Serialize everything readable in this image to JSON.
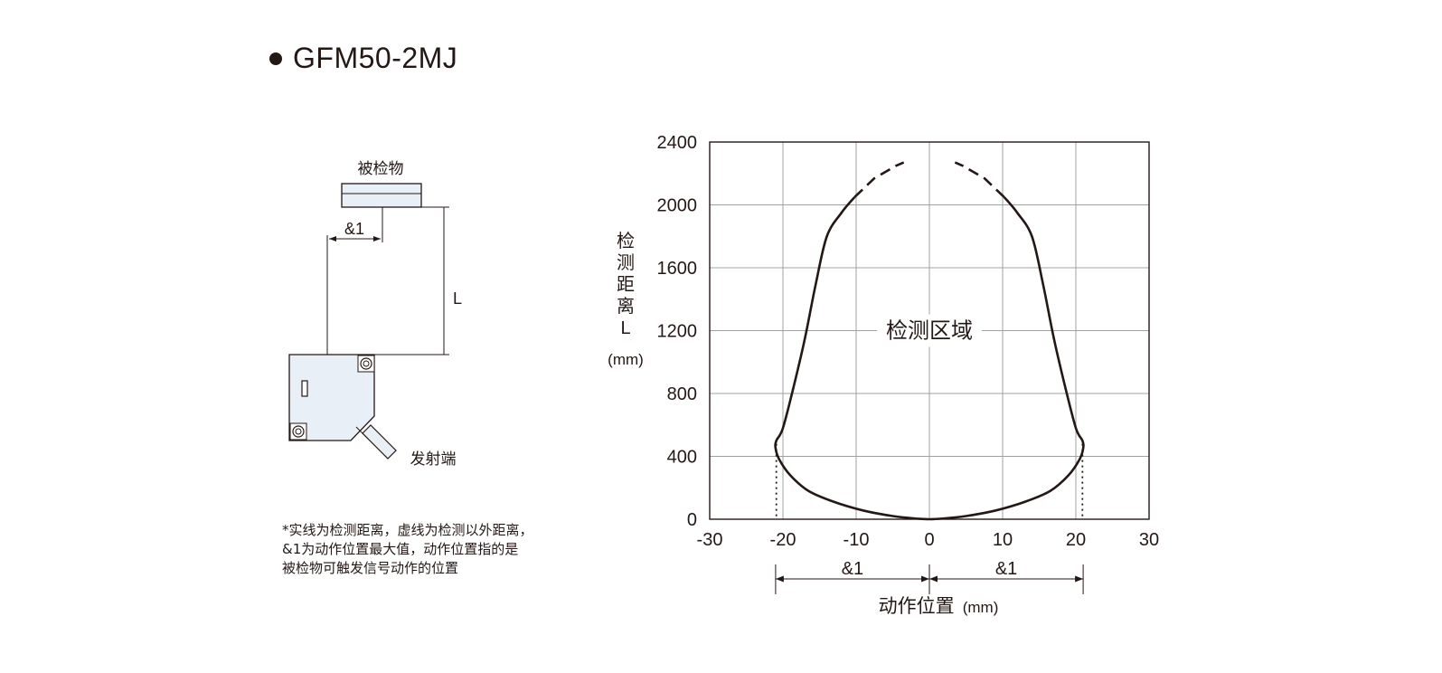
{
  "title": "GFM50-2MJ",
  "diagram": {
    "object_label": "被检物",
    "offset_label": "&1",
    "distance_label": "L",
    "emitter_label": "发射端"
  },
  "note": [
    "*实线为检测距离，虚线为检测以外距离，",
    "&1为动作位置最大值，动作位置指的是",
    "被检物可触发信号动作的位置"
  ],
  "chart_data": {
    "type": "line",
    "title": "",
    "xlabel": "动作位置",
    "xlabel_unit": "(mm)",
    "ylabel_chars": [
      "检",
      "测",
      "距",
      "离",
      "L"
    ],
    "ylabel_unit": "(mm)",
    "xlim": [
      -30,
      30
    ],
    "ylim": [
      0,
      2400
    ],
    "xticks": [
      -30,
      -20,
      -10,
      0,
      10,
      20,
      30
    ],
    "yticks": [
      0,
      400,
      800,
      1200,
      1600,
      2000,
      2400
    ],
    "grid": true,
    "region_label": "检测区域",
    "span_label": "&1",
    "span_x": [
      -21,
      0,
      21
    ],
    "series": [
      {
        "style": "solid",
        "x": [
          -10.2,
          -12,
          -14,
          -15.5,
          -17,
          -18.5,
          -20,
          -20.9,
          -21,
          -20.5,
          -19,
          -16.5,
          -13,
          -9,
          -5,
          -2,
          0,
          2,
          5,
          9,
          13,
          16.5,
          19,
          20.5,
          21,
          20.9,
          20,
          18.5,
          17,
          15.5,
          14,
          12,
          10.2
        ],
        "y": [
          2050,
          1950,
          1800,
          1500,
          1150,
          850,
          580,
          500,
          450,
          380,
          280,
          180,
          110,
          55,
          20,
          5,
          0,
          5,
          20,
          55,
          110,
          180,
          280,
          380,
          450,
          500,
          580,
          850,
          1150,
          1500,
          1800,
          1950,
          2050
        ]
      },
      {
        "style": "dashed",
        "x": [
          -10.2,
          -7.5,
          -4.5,
          -3.5
        ],
        "y": [
          2050,
          2170,
          2250,
          2270
        ]
      },
      {
        "style": "dashed",
        "x": [
          10.2,
          7.5,
          4.5,
          3.5
        ],
        "y": [
          2050,
          2170,
          2250,
          2270
        ]
      },
      {
        "style": "dotted",
        "x": [
          -20.9,
          -20.9
        ],
        "y": [
          480,
          0
        ]
      },
      {
        "style": "dotted",
        "x": [
          20.9,
          20.9
        ],
        "y": [
          480,
          0
        ]
      }
    ],
    "line_color": "#231815",
    "grid_color": "#9fa0a0"
  }
}
